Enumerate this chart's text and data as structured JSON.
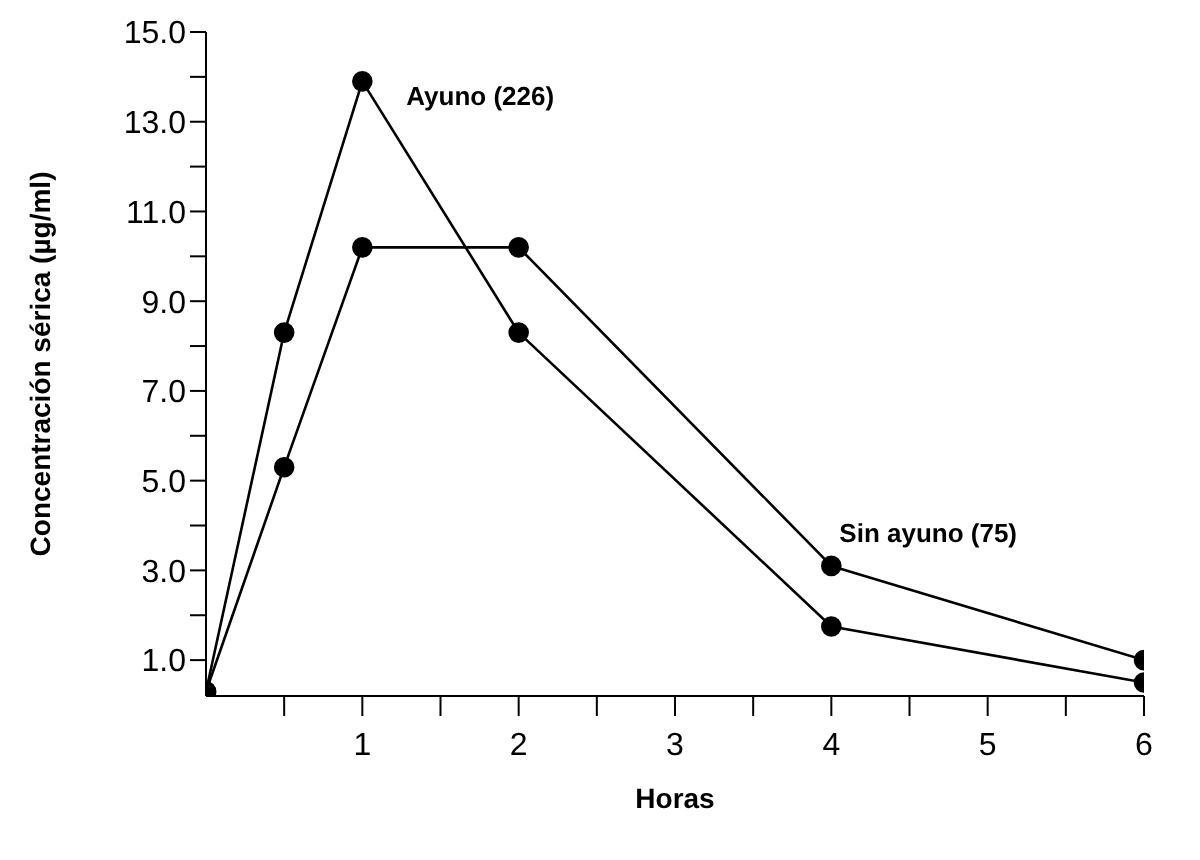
{
  "chart_data": {
    "type": "line",
    "xlabel": "Horas",
    "ylabel": "Concentración sérica (µg/ml)",
    "x": [
      0,
      0.5,
      1,
      2,
      4,
      6
    ],
    "series": [
      {
        "name": "Ayuno (226)",
        "color": "#000000",
        "values": [
          0.3,
          8.3,
          13.9,
          8.3,
          1.75,
          0.5
        ]
      },
      {
        "name": "Sin ayuno (75)",
        "color": "#000000",
        "values": [
          0.3,
          5.3,
          10.2,
          10.2,
          3.1,
          1.0
        ]
      }
    ],
    "xlim": [
      0,
      6
    ],
    "xticks": [
      {
        "value": 0.5,
        "label": null
      },
      1,
      {
        "value": 1.5,
        "label": null
      },
      2,
      {
        "value": 2.5,
        "label": null
      },
      3,
      {
        "value": 3.5,
        "label": null
      },
      4,
      {
        "value": 4.5,
        "label": null
      },
      5,
      {
        "value": 5.5,
        "label": null
      },
      6
    ],
    "ylim": [
      0.2,
      15
    ],
    "yticks": [
      {
        "value": 1,
        "label": "1.0"
      },
      {
        "value": 2,
        "label": null
      },
      {
        "value": 3,
        "label": "3.0"
      },
      {
        "value": 4,
        "label": null
      },
      {
        "value": 5,
        "label": "5.0"
      },
      {
        "value": 6,
        "label": null
      },
      {
        "value": 7,
        "label": "7.0"
      },
      {
        "value": 8,
        "label": null
      },
      {
        "value": 9,
        "label": "9.0"
      },
      {
        "value": 10,
        "label": null
      },
      {
        "value": 11,
        "label": "11.0"
      },
      {
        "value": 12,
        "label": null
      },
      {
        "value": 13,
        "label": "13.0"
      },
      {
        "value": 14,
        "label": null
      },
      {
        "value": 15,
        "label": "15.0"
      }
    ],
    "grid": false,
    "legend": false,
    "marker": "circle",
    "line_style": "solid"
  }
}
